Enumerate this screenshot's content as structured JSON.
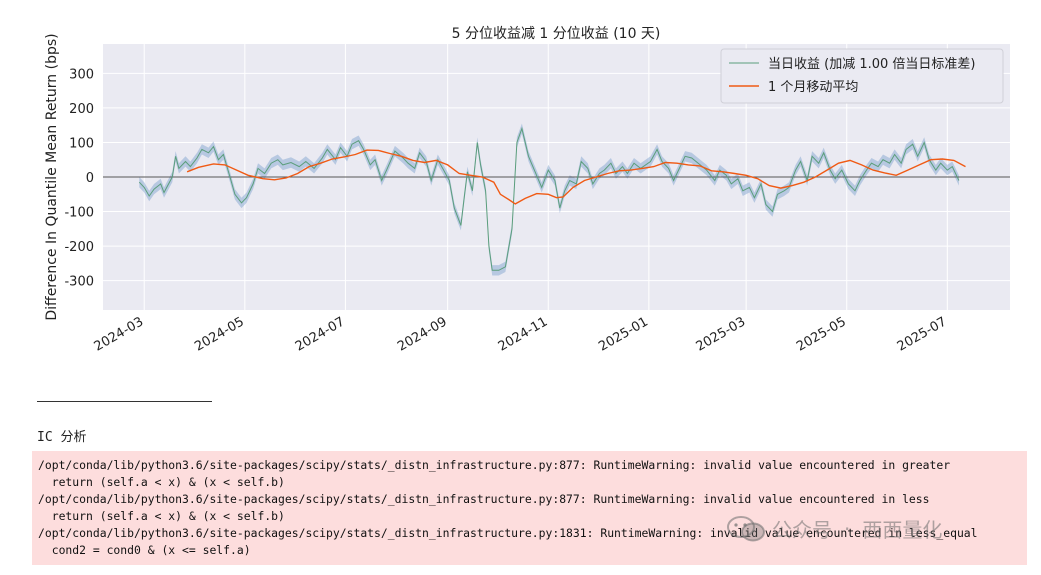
{
  "chart_data": {
    "type": "line",
    "title": "5 分位收益减 1 分位收益 (10 天)",
    "xlabel": "",
    "ylabel": "Difference In Quantile Mean Return (bps)",
    "ylim": [
      -385,
      385
    ],
    "yticks": [
      -300,
      -200,
      -100,
      0,
      100,
      200,
      300
    ],
    "ytick_labels": [
      "-300",
      "-200",
      "-100",
      "0",
      "100",
      "200",
      "300"
    ],
    "xlim": [
      "2024-02-05",
      "2025-08-08"
    ],
    "xticks": [
      "2024-03-01",
      "2024-05-01",
      "2024-07-01",
      "2024-09-01",
      "2024-11-01",
      "2025-01-01",
      "2025-03-01",
      "2025-05-01",
      "2025-07-01"
    ],
    "xtick_labels": [
      "2024-03",
      "2024-05",
      "2024-07",
      "2024-09",
      "2024-11",
      "2025-01",
      "2025-03",
      "2025-05",
      "2025-07"
    ],
    "grid": true,
    "zero_line": true,
    "legend_position": "top-right",
    "legend": [
      "当日收益 (加减 1.00 倍当日标准差)",
      "1 个月移动平均"
    ],
    "colors": {
      "daily_line": "#5b9e7c",
      "band_fill": "#7a9fcb",
      "moving_average": "#f05a14",
      "plot_background": "#eaeaf2",
      "grid": "#ffffff"
    },
    "band_width": 15,
    "series": [
      {
        "name": "当日收益 (加减 1.00 倍当日标准差)",
        "points": [
          [
            "2024-02-27",
            -15
          ],
          [
            "2024-03-01",
            -30
          ],
          [
            "2024-03-04",
            -55
          ],
          [
            "2024-03-07",
            -35
          ],
          [
            "2024-03-11",
            -20
          ],
          [
            "2024-03-13",
            -45
          ],
          [
            "2024-03-18",
            0
          ],
          [
            "2024-03-20",
            60
          ],
          [
            "2024-03-22",
            25
          ],
          [
            "2024-03-26",
            45
          ],
          [
            "2024-03-29",
            30
          ],
          [
            "2024-04-02",
            55
          ],
          [
            "2024-04-05",
            80
          ],
          [
            "2024-04-09",
            70
          ],
          [
            "2024-04-12",
            88
          ],
          [
            "2024-04-15",
            50
          ],
          [
            "2024-04-18",
            65
          ],
          [
            "2024-04-22",
            0
          ],
          [
            "2024-04-25",
            -50
          ],
          [
            "2024-04-29",
            -75
          ],
          [
            "2024-05-02",
            -60
          ],
          [
            "2024-05-06",
            -20
          ],
          [
            "2024-05-09",
            25
          ],
          [
            "2024-05-13",
            10
          ],
          [
            "2024-05-17",
            40
          ],
          [
            "2024-05-21",
            50
          ],
          [
            "2024-05-24",
            35
          ],
          [
            "2024-05-29",
            42
          ],
          [
            "2024-06-03",
            30
          ],
          [
            "2024-06-07",
            45
          ],
          [
            "2024-06-12",
            25
          ],
          [
            "2024-06-17",
            55
          ],
          [
            "2024-06-20",
            80
          ],
          [
            "2024-06-25",
            50
          ],
          [
            "2024-06-28",
            85
          ],
          [
            "2024-07-02",
            60
          ],
          [
            "2024-07-05",
            95
          ],
          [
            "2024-07-09",
            105
          ],
          [
            "2024-07-12",
            80
          ],
          [
            "2024-07-16",
            35
          ],
          [
            "2024-07-19",
            50
          ],
          [
            "2024-07-23",
            -10
          ],
          [
            "2024-07-26",
            20
          ],
          [
            "2024-07-31",
            75
          ],
          [
            "2024-08-05",
            55
          ],
          [
            "2024-08-08",
            40
          ],
          [
            "2024-08-12",
            25
          ],
          [
            "2024-08-15",
            70
          ],
          [
            "2024-08-19",
            45
          ],
          [
            "2024-08-22",
            -10
          ],
          [
            "2024-08-26",
            50
          ],
          [
            "2024-08-29",
            25
          ],
          [
            "2024-09-02",
            -10
          ],
          [
            "2024-09-05",
            -90
          ],
          [
            "2024-09-09",
            -140
          ],
          [
            "2024-09-11",
            -60
          ],
          [
            "2024-09-13",
            15
          ],
          [
            "2024-09-16",
            -40
          ],
          [
            "2024-09-19",
            100
          ],
          [
            "2024-09-21",
            35
          ],
          [
            "2024-09-24",
            -40
          ],
          [
            "2024-09-26",
            -200
          ],
          [
            "2024-09-28",
            -270
          ],
          [
            "2024-10-02",
            -270
          ],
          [
            "2024-10-06",
            -260
          ],
          [
            "2024-10-10",
            -150
          ],
          [
            "2024-10-13",
            100
          ],
          [
            "2024-10-16",
            140
          ],
          [
            "2024-10-20",
            60
          ],
          [
            "2024-10-24",
            15
          ],
          [
            "2024-10-28",
            -30
          ],
          [
            "2024-11-01",
            20
          ],
          [
            "2024-11-05",
            -10
          ],
          [
            "2024-11-08",
            -90
          ],
          [
            "2024-11-11",
            -40
          ],
          [
            "2024-11-14",
            -10
          ],
          [
            "2024-11-18",
            -20
          ],
          [
            "2024-11-21",
            45
          ],
          [
            "2024-11-25",
            25
          ],
          [
            "2024-11-28",
            -20
          ],
          [
            "2024-12-02",
            10
          ],
          [
            "2024-12-05",
            20
          ],
          [
            "2024-12-09",
            40
          ],
          [
            "2024-12-12",
            10
          ],
          [
            "2024-12-16",
            30
          ],
          [
            "2024-12-19",
            10
          ],
          [
            "2024-12-23",
            40
          ],
          [
            "2024-12-27",
            25
          ],
          [
            "2025-01-02",
            45
          ],
          [
            "2025-01-06",
            80
          ],
          [
            "2025-01-09",
            45
          ],
          [
            "2025-01-13",
            25
          ],
          [
            "2025-01-16",
            -10
          ],
          [
            "2025-01-20",
            30
          ],
          [
            "2025-01-23",
            60
          ],
          [
            "2025-01-27",
            55
          ],
          [
            "2025-02-05",
            20
          ],
          [
            "2025-02-10",
            -10
          ],
          [
            "2025-02-13",
            20
          ],
          [
            "2025-02-17",
            5
          ],
          [
            "2025-02-20",
            -20
          ],
          [
            "2025-02-24",
            -5
          ],
          [
            "2025-02-27",
            -40
          ],
          [
            "2025-03-03",
            -30
          ],
          [
            "2025-03-06",
            -60
          ],
          [
            "2025-03-10",
            -20
          ],
          [
            "2025-03-13",
            -80
          ],
          [
            "2025-03-17",
            -100
          ],
          [
            "2025-03-20",
            -50
          ],
          [
            "2025-03-24",
            -40
          ],
          [
            "2025-03-27",
            -30
          ],
          [
            "2025-03-31",
            20
          ],
          [
            "2025-04-03",
            45
          ],
          [
            "2025-04-07",
            -10
          ],
          [
            "2025-04-10",
            60
          ],
          [
            "2025-04-14",
            40
          ],
          [
            "2025-04-17",
            70
          ],
          [
            "2025-04-21",
            20
          ],
          [
            "2025-04-24",
            -5
          ],
          [
            "2025-04-28",
            20
          ],
          [
            "2025-05-02",
            -20
          ],
          [
            "2025-05-06",
            -40
          ],
          [
            "2025-05-09",
            -10
          ],
          [
            "2025-05-13",
            20
          ],
          [
            "2025-05-16",
            40
          ],
          [
            "2025-05-20",
            30
          ],
          [
            "2025-05-23",
            50
          ],
          [
            "2025-05-27",
            40
          ],
          [
            "2025-05-30",
            65
          ],
          [
            "2025-06-03",
            40
          ],
          [
            "2025-06-06",
            80
          ],
          [
            "2025-06-10",
            95
          ],
          [
            "2025-06-13",
            60
          ],
          [
            "2025-06-17",
            100
          ],
          [
            "2025-06-20",
            50
          ],
          [
            "2025-06-24",
            20
          ],
          [
            "2025-06-27",
            40
          ],
          [
            "2025-07-01",
            20
          ],
          [
            "2025-07-04",
            30
          ],
          [
            "2025-07-08",
            -10
          ]
        ]
      },
      {
        "name": "1 个月移动平均",
        "points": [
          [
            "2024-03-27",
            15
          ],
          [
            "2024-04-03",
            28
          ],
          [
            "2024-04-12",
            38
          ],
          [
            "2024-04-19",
            35
          ],
          [
            "2024-04-26",
            20
          ],
          [
            "2024-05-03",
            5
          ],
          [
            "2024-05-12",
            -5
          ],
          [
            "2024-05-19",
            -8
          ],
          [
            "2024-05-26",
            -3
          ],
          [
            "2024-06-02",
            10
          ],
          [
            "2024-06-09",
            30
          ],
          [
            "2024-06-16",
            40
          ],
          [
            "2024-06-23",
            52
          ],
          [
            "2024-06-30",
            58
          ],
          [
            "2024-07-07",
            65
          ],
          [
            "2024-07-14",
            78
          ],
          [
            "2024-07-21",
            77
          ],
          [
            "2024-07-28",
            68
          ],
          [
            "2024-08-04",
            60
          ],
          [
            "2024-08-11",
            48
          ],
          [
            "2024-08-18",
            42
          ],
          [
            "2024-08-25",
            48
          ],
          [
            "2024-09-01",
            35
          ],
          [
            "2024-09-08",
            10
          ],
          [
            "2024-09-15",
            5
          ],
          [
            "2024-09-22",
            0
          ],
          [
            "2024-09-29",
            -15
          ],
          [
            "2024-10-03",
            -50
          ],
          [
            "2024-10-08",
            -65
          ],
          [
            "2024-10-12",
            -78
          ],
          [
            "2024-10-18",
            -62
          ],
          [
            "2024-10-25",
            -48
          ],
          [
            "2024-11-01",
            -50
          ],
          [
            "2024-11-06",
            -60
          ],
          [
            "2024-11-10",
            -58
          ],
          [
            "2024-11-16",
            -30
          ],
          [
            "2024-11-23",
            -10
          ],
          [
            "2024-11-30",
            0
          ],
          [
            "2024-12-07",
            10
          ],
          [
            "2024-12-14",
            18
          ],
          [
            "2024-12-21",
            20
          ],
          [
            "2024-12-28",
            25
          ],
          [
            "2025-01-04",
            30
          ],
          [
            "2025-01-11",
            42
          ],
          [
            "2025-01-18",
            40
          ],
          [
            "2025-01-25",
            35
          ],
          [
            "2025-02-01",
            32
          ],
          [
            "2025-02-08",
            18
          ],
          [
            "2025-02-15",
            15
          ],
          [
            "2025-02-22",
            10
          ],
          [
            "2025-03-01",
            5
          ],
          [
            "2025-03-08",
            -5
          ],
          [
            "2025-03-15",
            -25
          ],
          [
            "2025-03-22",
            -32
          ],
          [
            "2025-03-29",
            -25
          ],
          [
            "2025-04-05",
            -15
          ],
          [
            "2025-04-12",
            0
          ],
          [
            "2025-04-19",
            20
          ],
          [
            "2025-04-26",
            40
          ],
          [
            "2025-05-03",
            48
          ],
          [
            "2025-05-10",
            35
          ],
          [
            "2025-05-17",
            20
          ],
          [
            "2025-05-24",
            12
          ],
          [
            "2025-05-31",
            5
          ],
          [
            "2025-06-07",
            20
          ],
          [
            "2025-06-14",
            35
          ],
          [
            "2025-06-21",
            50
          ],
          [
            "2025-06-28",
            52
          ],
          [
            "2025-07-05",
            48
          ],
          [
            "2025-07-12",
            30
          ]
        ]
      }
    ]
  },
  "section": {
    "heading": "IC 分析"
  },
  "stderr": {
    "lines": [
      "/opt/conda/lib/python3.6/site-packages/scipy/stats/_distn_infrastructure.py:877: RuntimeWarning: invalid value encountered in greater",
      "  return (self.a < x) & (x < self.b)",
      "/opt/conda/lib/python3.6/site-packages/scipy/stats/_distn_infrastructure.py:877: RuntimeWarning: invalid value encountered in less",
      "  return (self.a < x) & (x < self.b)",
      "/opt/conda/lib/python3.6/site-packages/scipy/stats/_distn_infrastructure.py:1831: RuntimeWarning: invalid value encountered in less_equal",
      "  cond2 = cond0 & (x <= self.a)"
    ]
  },
  "watermark": {
    "channel": "公众号",
    "separator": "·",
    "name": "西西量化",
    "icon": "wechat-icon"
  }
}
